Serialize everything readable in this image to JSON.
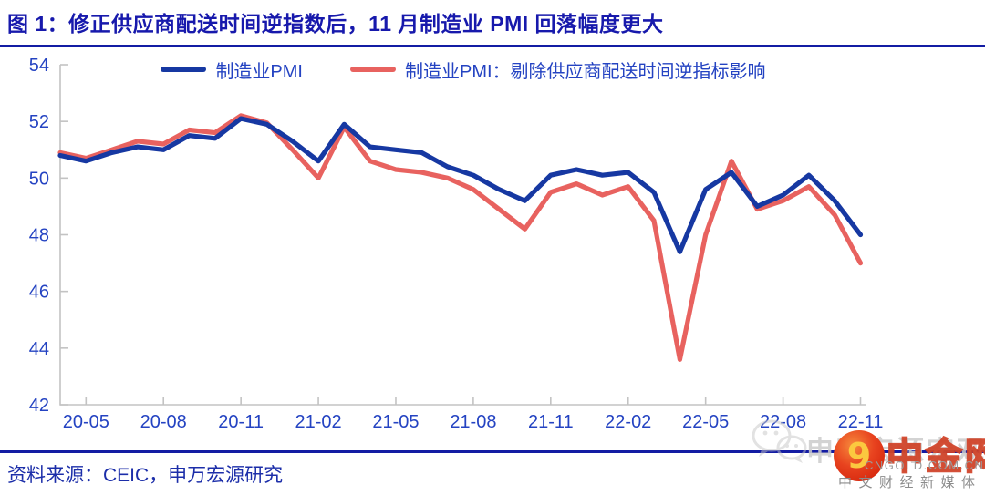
{
  "header": {
    "title": "图 1：修正供应商配送时间逆指数后，11 月制造业 PMI 回落幅度更大"
  },
  "colors": {
    "title_navy": "#1719AC",
    "axis_label_blue": "#2443C2",
    "axis_gray": "#C3C3C3",
    "pmi_line_blue": "#1638A2",
    "adjusted_line_red": "#E8625F"
  },
  "chart_data": {
    "type": "line",
    "title": "修正供应商配送时间逆指数后，11 月制造业 PMI 回落幅度更大",
    "x": [
      "20-04",
      "20-05",
      "20-06",
      "20-07",
      "20-08",
      "20-09",
      "20-10",
      "20-11",
      "20-12",
      "21-01",
      "21-02",
      "21-03",
      "21-04",
      "21-05",
      "21-06",
      "21-07",
      "21-08",
      "21-09",
      "21-10",
      "21-11",
      "21-12",
      "22-01",
      "22-02",
      "22-03",
      "22-04",
      "22-05",
      "22-06",
      "22-07",
      "22-08",
      "22-09",
      "22-10",
      "22-11"
    ],
    "series": [
      {
        "name": "制造业PMI",
        "color": "#1638A2",
        "values": [
          50.8,
          50.6,
          50.9,
          51.1,
          51.0,
          51.5,
          51.4,
          52.1,
          51.9,
          51.3,
          50.6,
          51.9,
          51.1,
          51.0,
          50.9,
          50.4,
          50.1,
          49.6,
          49.2,
          50.1,
          50.3,
          50.1,
          50.2,
          49.5,
          47.4,
          49.6,
          50.2,
          49.0,
          49.4,
          50.1,
          49.2,
          48.0
        ]
      },
      {
        "name": "制造业PMI：剔除供应商配送时间逆指标影响",
        "color": "#E8625F",
        "values": [
          50.9,
          50.7,
          51.0,
          51.3,
          51.2,
          51.7,
          51.6,
          52.2,
          51.95,
          51.0,
          50.0,
          51.8,
          50.6,
          50.3,
          50.2,
          50.0,
          49.6,
          48.9,
          48.2,
          49.5,
          49.8,
          49.4,
          49.7,
          48.5,
          43.6,
          48.0,
          50.6,
          48.9,
          49.2,
          49.7,
          48.7,
          47.0
        ]
      }
    ],
    "ylim": [
      42,
      54
    ],
    "yticks": [
      42,
      44,
      46,
      48,
      50,
      52,
      54
    ],
    "xtick_labels": [
      "20-05",
      "20-08",
      "20-11",
      "21-02",
      "21-05",
      "21-08",
      "21-11",
      "22-02",
      "22-05",
      "22-08",
      "22-11"
    ],
    "grid": false,
    "legend_position": "top"
  },
  "footer": {
    "source": "资料来源：CEIC，申万宏源研究"
  },
  "watermark": {
    "wechat_account": "申万宏源宏观",
    "site_name": "中金网",
    "site_domain": "CNGOLD.COM.CN",
    "site_tagline": "中文财经新媒体",
    "logo_outer_color": "#DD2B10",
    "logo_swirl_color": "#FBC93F"
  }
}
